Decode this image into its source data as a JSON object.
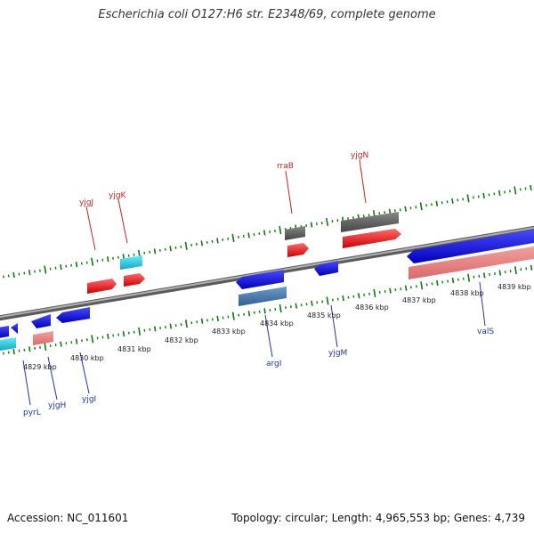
{
  "title": "Escherichia coli O127:H6 str. E2348/69, complete genome",
  "footer": {
    "accession": "Accession: NC_011601",
    "summary": "Topology: circular; Length: 4,965,553 bp; Genes: 4,739"
  },
  "axis_labels": [
    "4829 kbp",
    "4830 kbp",
    "4831 kbp",
    "4832 kbp",
    "4833 kbp",
    "4834 kbp",
    "4835 kbp",
    "4836 kbp",
    "4837 kbp",
    "4838 kbp",
    "4839 kbp"
  ],
  "genes_top": [
    {
      "name": "yjgJ",
      "color": "#ff1a1a"
    },
    {
      "name": "yjgK",
      "color": "#ff1a1a"
    },
    {
      "name": "rraB",
      "color": "#ff1a1a"
    },
    {
      "name": "yjgN",
      "color": "#ff1a1a"
    }
  ],
  "genes_bottom": [
    {
      "name": "pyrL",
      "color": "#1a1aee"
    },
    {
      "name": "yjgH",
      "color": "#1a1aee"
    },
    {
      "name": "yjgI",
      "color": "#1a1aee"
    },
    {
      "name": "argI",
      "color": "#1a1aee"
    },
    {
      "name": "yjgM",
      "color": "#1a1aee"
    },
    {
      "name": "valS",
      "color": "#1a1aee"
    }
  ],
  "colors": {
    "forward_cds": "#ff1a1a",
    "reverse_cds": "#1a1aee",
    "trna_top": "#22ccdd",
    "rrna_grey": "#666666",
    "pink": "#ee8888",
    "steel": "#4477aa",
    "backbone": "#777777",
    "tick_green": "#117711"
  }
}
